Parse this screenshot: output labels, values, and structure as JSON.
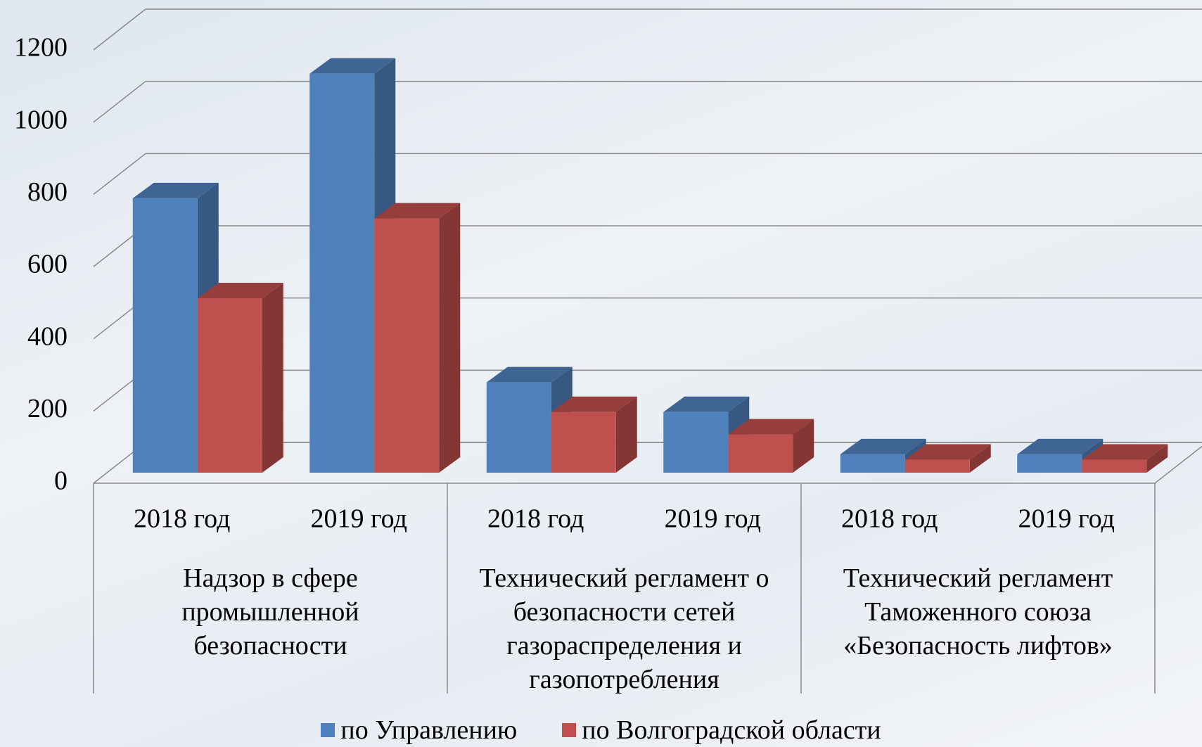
{
  "chart_data": {
    "type": "bar3d",
    "categories": [
      "2018 год",
      "2019 год",
      "2018 год",
      "2019 год",
      "2018 год",
      "2019 год"
    ],
    "category_groups": [
      "Надзор в сфере промышленной безопасности",
      "Технический регламент о безопасности сетей газораспределения и газопотребления",
      "Технический регламент Таможенного союза «Безопасность лифтов»"
    ],
    "series": [
      {
        "name": "по Управлению",
        "color": "#4f81bd",
        "values": [
          760,
          1105,
          250,
          168,
          51,
          51
        ]
      },
      {
        "name": "по Волгоградской области",
        "color": "#c0504d",
        "values": [
          483,
          704,
          168,
          106,
          36,
          36
        ]
      }
    ],
    "ylim": [
      0,
      1200
    ],
    "yticks": [
      0,
      200,
      400,
      600,
      800,
      1000,
      1200
    ],
    "grid": true,
    "legend": "bottom"
  }
}
